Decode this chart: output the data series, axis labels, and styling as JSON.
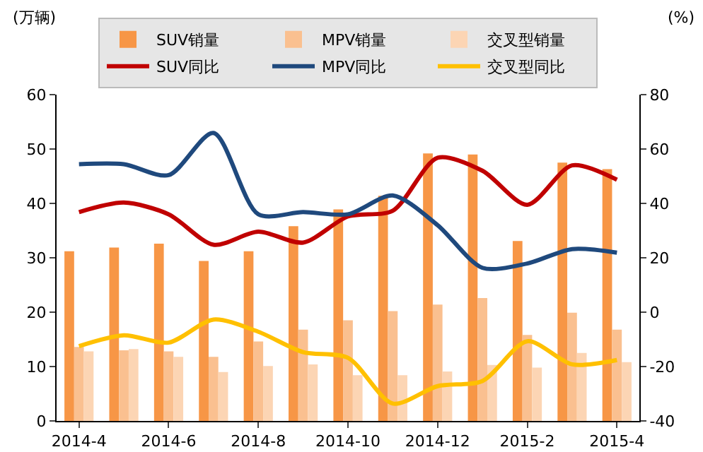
{
  "chart_data": {
    "type": "bar",
    "ylabel": "(万辆)",
    "y2label": "(%)",
    "categories": [
      "2014-4",
      null,
      "2014-6",
      null,
      "2014-8",
      null,
      "2014-10",
      null,
      "2014-12",
      null,
      "2015-2",
      null,
      "2015-4"
    ],
    "series": [
      {
        "name": "SUV销量",
        "color": "#f79646",
        "values": [
          31.2,
          31.9,
          32.6,
          29.4,
          31.2,
          35.8,
          38.9,
          41.4,
          49.2,
          49,
          33.1,
          47.5,
          46.3
        ]
      },
      {
        "name": "MPV销量",
        "color": "#fac090",
        "values": [
          13.6,
          13,
          12.8,
          11.8,
          14.6,
          16.8,
          18.5,
          20.2,
          21.4,
          22.6,
          15.8,
          19.9,
          16.8
        ]
      },
      {
        "name": "交叉型销量",
        "color": "#fcd5b4",
        "values": [
          12.8,
          13.2,
          11.8,
          9,
          10.1,
          10.4,
          8.4,
          8.4,
          9.1,
          10.3,
          9.8,
          12.5,
          10.8
        ]
      },
      {
        "name": "SUV同比",
        "type": "line",
        "axis": "y2",
        "color": "#c00000",
        "values": [
          36.8,
          40.3,
          36,
          24.8,
          29.6,
          25.6,
          35.2,
          37.3,
          56.8,
          52,
          39.5,
          54,
          48.7
        ]
      },
      {
        "name": "MPV同比",
        "type": "line",
        "axis": "y2",
        "color": "#1f497d",
        "values": [
          54.4,
          54.4,
          50.4,
          65.9,
          36,
          36.8,
          36,
          42.9,
          32,
          16.3,
          17.9,
          23.2,
          21.9
        ]
      },
      {
        "name": "交叉型同比",
        "type": "line",
        "axis": "y2",
        "color": "#ffc000",
        "values": [
          -12.5,
          -8.5,
          -11.2,
          -2.7,
          -7.2,
          -14.7,
          -16.8,
          -33.6,
          -27.2,
          -25.3,
          -10.7,
          -19.2,
          -17.6
        ]
      }
    ],
    "ylim": [
      0,
      60
    ],
    "yticks": [
      0,
      10,
      20,
      30,
      40,
      50,
      60
    ],
    "y2lim": [
      -40,
      80
    ],
    "y2ticks": [
      -40,
      -20,
      0,
      20,
      40,
      60,
      80
    ],
    "legend": "top",
    "grid": false,
    "marker": "none",
    "line_style": "solid"
  }
}
